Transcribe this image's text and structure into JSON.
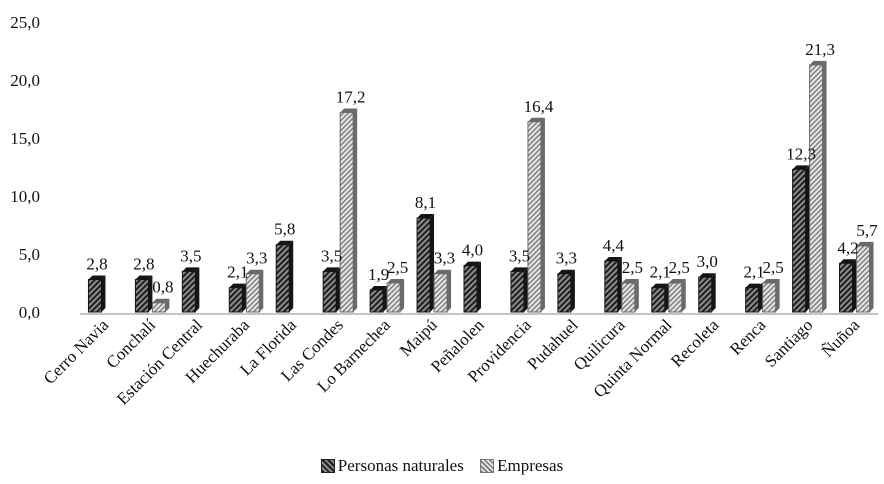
{
  "chart_data": {
    "type": "bar",
    "categories": [
      "Cerro Navia",
      "Conchalí",
      "Estación Central",
      "Huechuraba",
      "La Florida",
      "Las Condes",
      "Lo Barnechea",
      "Maipú",
      "Peñalolen",
      "Providencia",
      "Pudahuel",
      "Quilicura",
      "Quinta Normal",
      "Recoleta",
      "Renca",
      "Santiago",
      "Ñuñoa"
    ],
    "series": [
      {
        "name": "Personas naturales",
        "values": [
          2.8,
          2.8,
          3.5,
          2.1,
          5.8,
          3.5,
          1.9,
          8.1,
          4.0,
          3.5,
          3.3,
          4.4,
          2.1,
          3.0,
          2.1,
          12.3,
          4.2
        ],
        "labels": [
          "2,8",
          "2,8",
          "3,5",
          "2,1",
          "5,8",
          "3,5",
          "1,9",
          "8,1",
          "4,0",
          "3,5",
          "3,3",
          "4,4",
          "2,1",
          "3,0",
          "2,1",
          "12,3",
          "4,2"
        ]
      },
      {
        "name": "Empresas",
        "values": [
          null,
          0.8,
          null,
          3.3,
          null,
          17.2,
          2.5,
          3.3,
          null,
          16.4,
          null,
          2.5,
          2.5,
          null,
          2.5,
          21.3,
          5.7
        ],
        "labels": [
          null,
          "0,8",
          null,
          "3,3",
          null,
          "17,2",
          "2,5",
          "3,3",
          null,
          "16,4",
          null,
          "2,5",
          "2,5",
          null,
          "2,5",
          "21,3",
          "5,7"
        ]
      }
    ],
    "yticks": [
      "0,0",
      "5,0",
      "10,0",
      "15,0",
      "20,0",
      "25,0"
    ],
    "ylim": [
      0,
      25
    ],
    "legend_position": "bottom",
    "colors": {
      "series1_dark": "#1e1e1e",
      "series1_light": "#8c8c8c",
      "series2_dark": "#7a7a7a",
      "series2_light": "#e6e6e6"
    }
  },
  "legend": {
    "series1": "Personas naturales",
    "series2": "Empresas"
  }
}
